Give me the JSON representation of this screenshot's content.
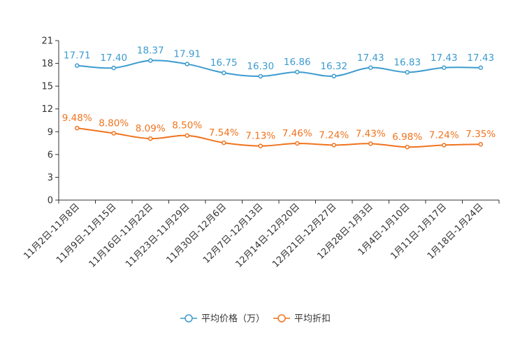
{
  "chart_data": {
    "type": "line",
    "title": "",
    "xlabel": "",
    "ylabel": "",
    "ylim": [
      0,
      21
    ],
    "yticks": [
      0,
      3,
      6,
      9,
      12,
      15,
      18,
      21
    ],
    "grid": false,
    "legend_position": "bottom-center",
    "categories": [
      "11月2日-11月8日",
      "11月9日-11月15日",
      "11月16日-11月22日",
      "11月23日-11月29日",
      "11月30日-12月6日",
      "12月7日-12月13日",
      "12月14日-12月20日",
      "12月21日-12月27日",
      "12月28日-1月3日",
      "1月4日-1月10日",
      "1月11日-1月17日",
      "1月18日-1月24日"
    ],
    "series": [
      {
        "name": "平均价格（万）",
        "color": "#3c9bcf",
        "values": [
          17.71,
          17.4,
          18.37,
          17.91,
          16.75,
          16.3,
          16.86,
          16.32,
          17.43,
          16.83,
          17.43,
          17.43
        ],
        "labels": [
          "17.71",
          "17.40",
          "18.37",
          "17.91",
          "16.75",
          "16.30",
          "16.86",
          "16.32",
          "17.43",
          "16.83",
          "17.43",
          "17.43"
        ]
      },
      {
        "name": "平均折扣",
        "color": "#f0731e",
        "values": [
          9.48,
          8.8,
          8.09,
          8.5,
          7.54,
          7.13,
          7.46,
          7.24,
          7.43,
          6.98,
          7.24,
          7.35
        ],
        "labels": [
          "9.48%",
          "8.80%",
          "8.09%",
          "8.50%",
          "7.54%",
          "7.13%",
          "7.46%",
          "7.24%",
          "7.43%",
          "6.98%",
          "7.24%",
          "7.35%"
        ]
      }
    ]
  }
}
